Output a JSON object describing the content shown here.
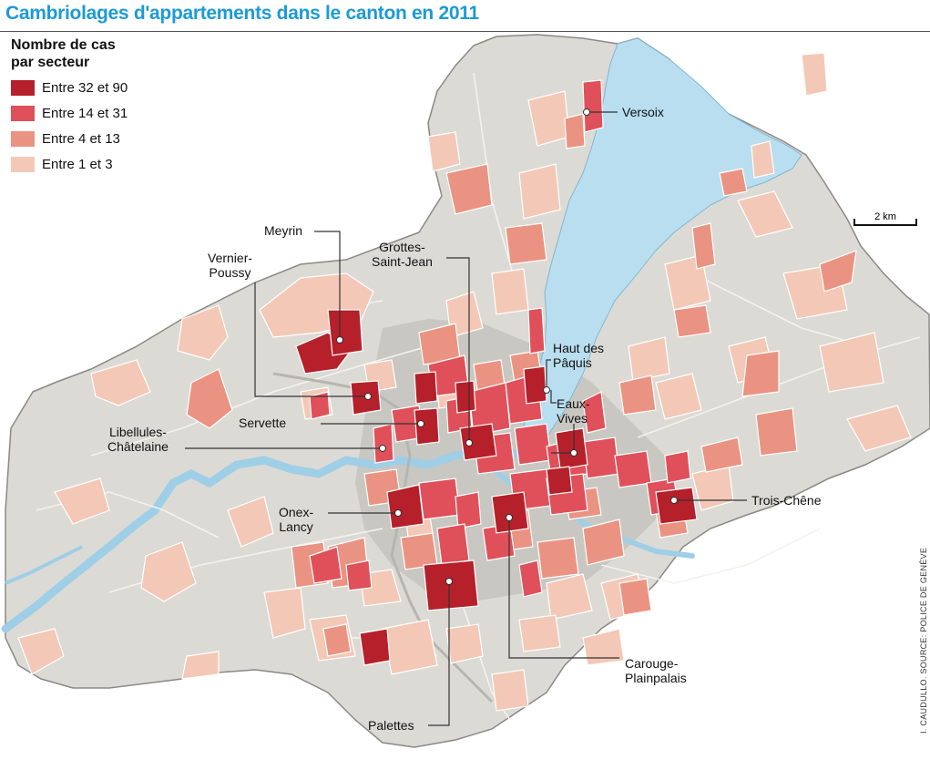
{
  "title": "Cambriolages d'appartements dans le canton en 2011",
  "legend": {
    "title_line1": "Nombre de cas",
    "title_line2": "par secteur",
    "classes": [
      {
        "label": "Entre 32 et 90",
        "color": "#b5202a"
      },
      {
        "label": "Entre 14 et 31",
        "color": "#e0505a"
      },
      {
        "label": "Entre 4 et 13",
        "color": "#eb9382"
      },
      {
        "label": "Entre 1 et 3",
        "color": "#f4c8b6"
      }
    ]
  },
  "colors": {
    "land": "#dcdad5",
    "lake": "#b9deef",
    "river": "#9ecfe6",
    "sector_border": "#ffffff",
    "urban": "#c9c7c2"
  },
  "places": {
    "versoix": "Versoix",
    "meyrin": "Meyrin",
    "vernier_1": "Vernier-",
    "vernier_2": "Poussy",
    "grottes_1": "Grottes-",
    "grottes_2": "Saint-Jean",
    "paquis_1": "Haut des",
    "paquis_2": "Pâquis",
    "eaux_1": "Eaux-",
    "eaux_2": "Vives",
    "servette": "Servette",
    "libellules_1": "Libellules-",
    "libellules_2": "Châtelaine",
    "onex_1": "Onex-",
    "onex_2": "Lancy",
    "trois_chene": "Trois-Chêne",
    "carouge_1": "Carouge-",
    "carouge_2": "Plainpalais",
    "palettes": "Palettes"
  },
  "scale_label": "2 km",
  "credit": "I. CAUDULLO. SOURCE: POLICE DE GENÈVE"
}
